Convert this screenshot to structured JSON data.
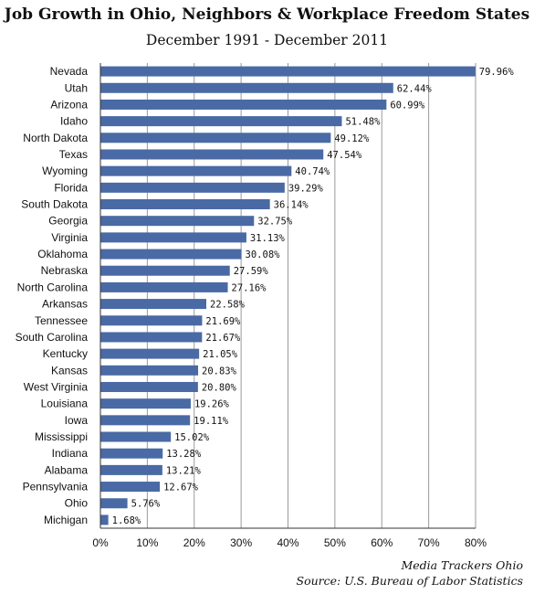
{
  "chart_data": {
    "type": "bar",
    "orientation": "horizontal",
    "title": "Job Growth in Ohio, Neighbors & Workplace Freedom States",
    "subtitle": "December 1991 - December 2011",
    "categories": [
      "Nevada",
      "Utah",
      "Arizona",
      "Idaho",
      "North Dakota",
      "Texas",
      "Wyoming",
      "Florida",
      "South Dakota",
      "Georgia",
      "Virginia",
      "Oklahoma",
      "Nebraska",
      "North Carolina",
      "Arkansas",
      "Tennessee",
      "South Carolina",
      "Kentucky",
      "Kansas",
      "West Virginia",
      "Louisiana",
      "Iowa",
      "Mississippi",
      "Indiana",
      "Alabama",
      "Pennsylvania",
      "Ohio",
      "Michigan"
    ],
    "values": [
      79.96,
      62.44,
      60.99,
      51.48,
      49.12,
      47.54,
      40.74,
      39.29,
      36.14,
      32.75,
      31.13,
      30.08,
      27.59,
      27.16,
      22.58,
      21.69,
      21.67,
      21.05,
      20.83,
      20.8,
      19.26,
      19.11,
      15.02,
      13.28,
      13.21,
      12.67,
      5.76,
      1.68
    ],
    "value_labels": [
      "79.96%",
      "62.44%",
      "60.99%",
      "51.48%",
      "49.12%",
      "47.54%",
      "40.74%",
      "39.29%",
      "36.14%",
      "32.75%",
      "31.13%",
      "30.08%",
      "27.59%",
      "27.16%",
      "22.58%",
      "21.69%",
      "21.67%",
      "21.05%",
      "20.83%",
      "20.80%",
      "19.26%",
      "19.11%",
      "15.02%",
      "13.28%",
      "13.21%",
      "12.67%",
      "5.76%",
      "1.68%"
    ],
    "xlim": [
      0,
      80
    ],
    "x_ticks": [
      "0%",
      "10%",
      "20%",
      "30%",
      "40%",
      "50%",
      "60%",
      "70%",
      "80%"
    ],
    "x_tick_values": [
      0,
      10,
      20,
      30,
      40,
      50,
      60,
      70,
      80
    ],
    "grid": "vertical",
    "bar_color": "#4a6aa5",
    "grid_color": "#9a9a9a"
  },
  "credits": {
    "line1": "Media Trackers Ohio",
    "line2": "Source: U.S. Bureau of Labor Statistics"
  }
}
